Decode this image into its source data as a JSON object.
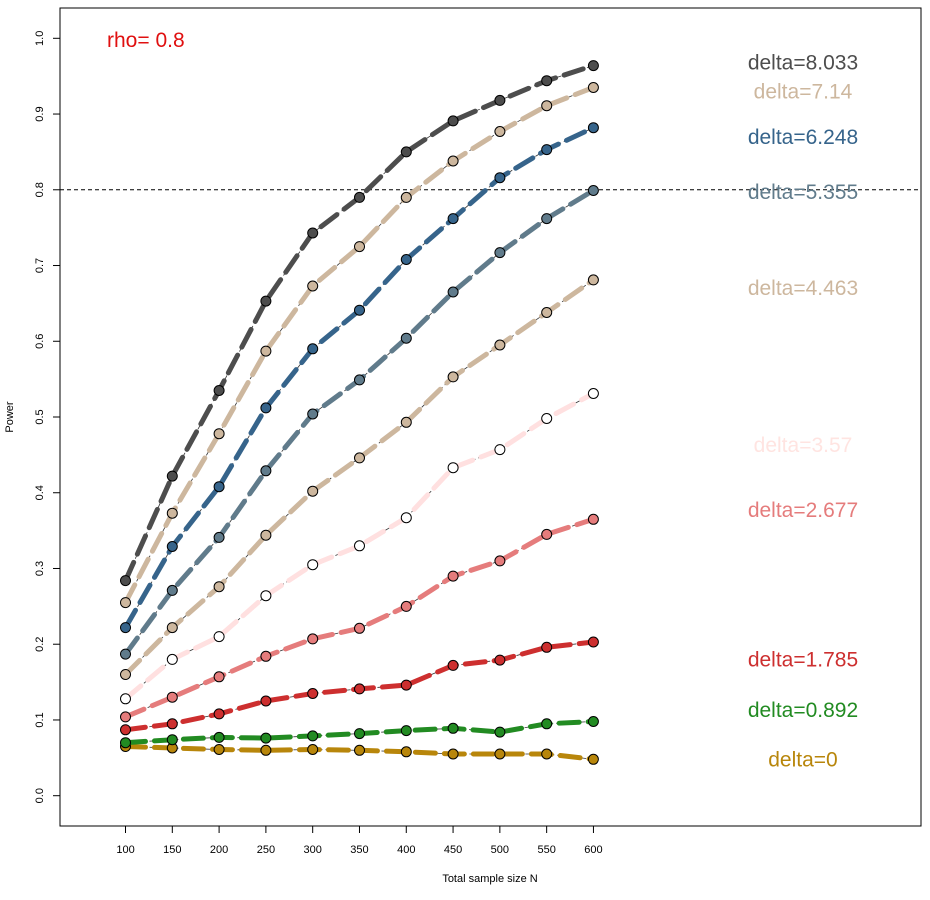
{
  "chart_data": {
    "type": "line",
    "title": "",
    "xlabel": "Total sample size N",
    "ylabel": "Power",
    "x": [
      100,
      150,
      200,
      250,
      300,
      350,
      400,
      450,
      500,
      550,
      600
    ],
    "xticks": [
      100,
      150,
      200,
      250,
      300,
      350,
      400,
      450,
      500,
      550,
      600
    ],
    "xlim": [
      30,
      950
    ],
    "yticks": [
      0.0,
      0.1,
      0.2,
      0.3,
      0.4,
      0.5,
      0.6,
      0.7,
      0.8,
      0.9,
      1.0
    ],
    "ylim": [
      -0.04,
      1.04
    ],
    "grid": false,
    "reference_line": {
      "y": 0.8,
      "style": "dashed"
    },
    "annotation": {
      "text": "rho= 0.8",
      "color": "#e01010"
    },
    "series": [
      {
        "label": "delta=0",
        "line_color": "#b8860b",
        "fill": "#b8860b",
        "label_color": "#b8860b",
        "values": [
          0.065,
          0.063,
          0.061,
          0.06,
          0.061,
          0.06,
          0.058,
          0.055,
          0.055,
          0.055,
          0.048
        ]
      },
      {
        "label": "delta=0.892",
        "line_color": "#228b22",
        "fill": "#228b22",
        "label_color": "#228b22",
        "values": [
          0.07,
          0.074,
          0.077,
          0.076,
          0.079,
          0.082,
          0.086,
          0.089,
          0.084,
          0.095,
          0.098
        ]
      },
      {
        "label": "delta=1.785",
        "line_color": "#cd2f2f",
        "fill": "#cd2f2f",
        "label_color": "#cd2f2f",
        "values": [
          0.087,
          0.095,
          0.108,
          0.125,
          0.135,
          0.141,
          0.146,
          0.172,
          0.179,
          0.196,
          0.203
        ]
      },
      {
        "label": "delta=2.677",
        "line_color": "#e57c7c",
        "fill": "#e57c7c",
        "label_color": "#e57c7c",
        "values": [
          0.104,
          0.13,
          0.157,
          0.184,
          0.207,
          0.221,
          0.25,
          0.29,
          0.31,
          0.345,
          0.365
        ]
      },
      {
        "label": "delta=3.57",
        "line_color": "#ffe0e0",
        "fill": "#ffffff",
        "label_color": "#ffe4e1",
        "values": [
          0.128,
          0.18,
          0.21,
          0.264,
          0.305,
          0.33,
          0.367,
          0.433,
          0.457,
          0.498,
          0.531
        ]
      },
      {
        "label": "delta=4.463",
        "line_color": "#cdb79e",
        "fill": "#cdb79e",
        "label_color": "#cdb79e",
        "values": [
          0.16,
          0.222,
          0.276,
          0.344,
          0.402,
          0.446,
          0.493,
          0.553,
          0.595,
          0.638,
          0.681
        ]
      },
      {
        "label": "delta=5.355",
        "line_color": "#607b8b",
        "fill": "#607b8b",
        "label_color": "#607b8b",
        "values": [
          0.187,
          0.271,
          0.341,
          0.429,
          0.504,
          0.549,
          0.604,
          0.665,
          0.717,
          0.762,
          0.799
        ]
      },
      {
        "label": "delta=6.248",
        "line_color": "#36648b",
        "fill": "#36648b",
        "label_color": "#36648b",
        "values": [
          0.222,
          0.329,
          0.408,
          0.512,
          0.59,
          0.641,
          0.708,
          0.762,
          0.816,
          0.853,
          0.882
        ]
      },
      {
        "label": "delta=7.14",
        "line_color": "#cdb79e",
        "fill": "#cdb79e",
        "label_color": "#cdb79e",
        "values": [
          0.255,
          0.373,
          0.478,
          0.587,
          0.673,
          0.725,
          0.79,
          0.838,
          0.877,
          0.911,
          0.935
        ]
      },
      {
        "label": "delta=8.033",
        "line_color": "#4d4d4d",
        "fill": "#4d4d4d",
        "label_color": "#4d4d4d",
        "values": [
          0.284,
          0.422,
          0.535,
          0.653,
          0.743,
          0.79,
          0.85,
          0.891,
          0.918,
          0.944,
          0.964
        ]
      }
    ]
  }
}
